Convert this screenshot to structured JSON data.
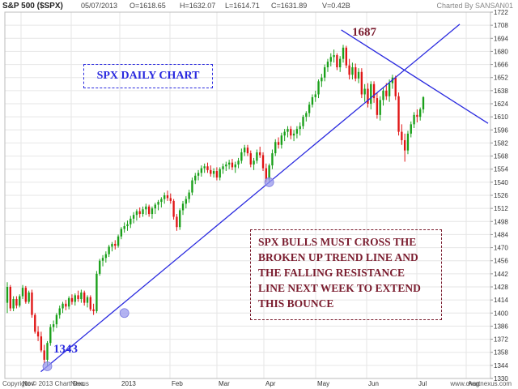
{
  "header": {
    "symbol": "S&P 500 ($SPX)",
    "date": "05/07/2013",
    "open": "O=1618.65",
    "high": "H=1632.07",
    "low": "L=1614.71",
    "close": "C=1631.89",
    "volume": "V=0.42B",
    "credit": "Charted By SANSAN01"
  },
  "footer": {
    "copyright": "Copyright © 2013 ChartNexus",
    "site": "www.chartnexus.com"
  },
  "annotations": {
    "title": "SPX DAILY CHART",
    "note": "SPX BULLS MUST CROSS THE\nBROKEN UP TREND LINE AND\nTHE FALLING RESISTANCE\nLINE NEXT WEEK TO EXTEND\nTHIS BOUNCE",
    "high_label": "1687",
    "low_label": "1343"
  },
  "colors": {
    "up": "#1aa01a",
    "down": "#e01515",
    "trendline": "#2a2adf",
    "grid": "#e6e6e6",
    "note": "#7a1c2e"
  },
  "chart_data": {
    "type": "candlestick",
    "title": "",
    "ylim": [
      1330,
      1722
    ],
    "y_ticks": [
      1330,
      1344,
      1358,
      1372,
      1386,
      1400,
      1414,
      1428,
      1442,
      1456,
      1470,
      1484,
      1498,
      1512,
      1526,
      1540,
      1554,
      1568,
      1582,
      1596,
      1610,
      1624,
      1638,
      1652,
      1666,
      1680,
      1694,
      1708,
      1722
    ],
    "x_ticks": [
      "Nov",
      "Dec",
      "2013",
      "Feb",
      "Mar",
      "Apr",
      "May",
      "Jun",
      "Jul",
      "Aug"
    ],
    "candles": [
      {
        "o": 1411,
        "h": 1433,
        "l": 1400,
        "c": 1428
      },
      {
        "o": 1428,
        "h": 1430,
        "l": 1402,
        "c": 1405
      },
      {
        "o": 1405,
        "h": 1418,
        "l": 1402,
        "c": 1415
      },
      {
        "o": 1415,
        "h": 1418,
        "l": 1405,
        "c": 1408
      },
      {
        "o": 1408,
        "h": 1420,
        "l": 1406,
        "c": 1418
      },
      {
        "o": 1418,
        "h": 1430,
        "l": 1415,
        "c": 1427
      },
      {
        "o": 1427,
        "h": 1429,
        "l": 1410,
        "c": 1412
      },
      {
        "o": 1412,
        "h": 1424,
        "l": 1410,
        "c": 1422
      },
      {
        "o": 1422,
        "h": 1425,
        "l": 1395,
        "c": 1398
      },
      {
        "o": 1398,
        "h": 1400,
        "l": 1378,
        "c": 1380
      },
      {
        "o": 1380,
        "h": 1386,
        "l": 1370,
        "c": 1375
      },
      {
        "o": 1375,
        "h": 1380,
        "l": 1358,
        "c": 1360
      },
      {
        "o": 1360,
        "h": 1366,
        "l": 1345,
        "c": 1350
      },
      {
        "o": 1350,
        "h": 1370,
        "l": 1343,
        "c": 1368
      },
      {
        "o": 1368,
        "h": 1388,
        "l": 1365,
        "c": 1385
      },
      {
        "o": 1385,
        "h": 1392,
        "l": 1380,
        "c": 1388
      },
      {
        "o": 1388,
        "h": 1400,
        "l": 1384,
        "c": 1398
      },
      {
        "o": 1398,
        "h": 1408,
        "l": 1394,
        "c": 1405
      },
      {
        "o": 1405,
        "h": 1412,
        "l": 1400,
        "c": 1410
      },
      {
        "o": 1410,
        "h": 1414,
        "l": 1403,
        "c": 1407
      },
      {
        "o": 1407,
        "h": 1418,
        "l": 1404,
        "c": 1416
      },
      {
        "o": 1416,
        "h": 1420,
        "l": 1409,
        "c": 1412
      },
      {
        "o": 1412,
        "h": 1421,
        "l": 1408,
        "c": 1419
      },
      {
        "o": 1419,
        "h": 1424,
        "l": 1412,
        "c": 1415
      },
      {
        "o": 1415,
        "h": 1425,
        "l": 1411,
        "c": 1422
      },
      {
        "o": 1422,
        "h": 1424,
        "l": 1408,
        "c": 1411
      },
      {
        "o": 1411,
        "h": 1419,
        "l": 1406,
        "c": 1417
      },
      {
        "o": 1417,
        "h": 1419,
        "l": 1402,
        "c": 1404
      },
      {
        "o": 1404,
        "h": 1410,
        "l": 1398,
        "c": 1402
      },
      {
        "o": 1402,
        "h": 1445,
        "l": 1400,
        "c": 1442
      },
      {
        "o": 1442,
        "h": 1458,
        "l": 1440,
        "c": 1456
      },
      {
        "o": 1456,
        "h": 1462,
        "l": 1450,
        "c": 1459
      },
      {
        "o": 1459,
        "h": 1466,
        "l": 1454,
        "c": 1463
      },
      {
        "o": 1463,
        "h": 1473,
        "l": 1460,
        "c": 1471
      },
      {
        "o": 1471,
        "h": 1476,
        "l": 1466,
        "c": 1474
      },
      {
        "o": 1474,
        "h": 1478,
        "l": 1468,
        "c": 1472
      },
      {
        "o": 1472,
        "h": 1484,
        "l": 1470,
        "c": 1482
      },
      {
        "o": 1482,
        "h": 1492,
        "l": 1479,
        "c": 1490
      },
      {
        "o": 1490,
        "h": 1497,
        "l": 1486,
        "c": 1493
      },
      {
        "o": 1493,
        "h": 1499,
        "l": 1488,
        "c": 1495
      },
      {
        "o": 1495,
        "h": 1504,
        "l": 1491,
        "c": 1501
      },
      {
        "o": 1501,
        "h": 1508,
        "l": 1496,
        "c": 1505
      },
      {
        "o": 1505,
        "h": 1511,
        "l": 1499,
        "c": 1509
      },
      {
        "o": 1509,
        "h": 1513,
        "l": 1502,
        "c": 1506
      },
      {
        "o": 1506,
        "h": 1514,
        "l": 1503,
        "c": 1511
      },
      {
        "o": 1511,
        "h": 1517,
        "l": 1505,
        "c": 1514
      },
      {
        "o": 1514,
        "h": 1516,
        "l": 1503,
        "c": 1506
      },
      {
        "o": 1506,
        "h": 1514,
        "l": 1501,
        "c": 1512
      },
      {
        "o": 1512,
        "h": 1518,
        "l": 1506,
        "c": 1516
      },
      {
        "o": 1516,
        "h": 1521,
        "l": 1510,
        "c": 1519
      },
      {
        "o": 1519,
        "h": 1524,
        "l": 1513,
        "c": 1522
      },
      {
        "o": 1522,
        "h": 1529,
        "l": 1517,
        "c": 1526
      },
      {
        "o": 1526,
        "h": 1531,
        "l": 1520,
        "c": 1523
      },
      {
        "o": 1523,
        "h": 1528,
        "l": 1517,
        "c": 1520
      },
      {
        "o": 1520,
        "h": 1522,
        "l": 1500,
        "c": 1503
      },
      {
        "o": 1503,
        "h": 1506,
        "l": 1488,
        "c": 1492
      },
      {
        "o": 1492,
        "h": 1512,
        "l": 1489,
        "c": 1510
      },
      {
        "o": 1510,
        "h": 1520,
        "l": 1505,
        "c": 1517
      },
      {
        "o": 1517,
        "h": 1525,
        "l": 1512,
        "c": 1522
      },
      {
        "o": 1522,
        "h": 1532,
        "l": 1518,
        "c": 1529
      },
      {
        "o": 1529,
        "h": 1545,
        "l": 1526,
        "c": 1542
      },
      {
        "o": 1542,
        "h": 1550,
        "l": 1538,
        "c": 1547
      },
      {
        "o": 1547,
        "h": 1553,
        "l": 1542,
        "c": 1550
      },
      {
        "o": 1550,
        "h": 1558,
        "l": 1546,
        "c": 1555
      },
      {
        "o": 1555,
        "h": 1560,
        "l": 1550,
        "c": 1557
      },
      {
        "o": 1557,
        "h": 1561,
        "l": 1550,
        "c": 1553
      },
      {
        "o": 1553,
        "h": 1558,
        "l": 1546,
        "c": 1549
      },
      {
        "o": 1549,
        "h": 1555,
        "l": 1545,
        "c": 1552
      },
      {
        "o": 1552,
        "h": 1556,
        "l": 1542,
        "c": 1545
      },
      {
        "o": 1545,
        "h": 1556,
        "l": 1542,
        "c": 1554
      },
      {
        "o": 1554,
        "h": 1560,
        "l": 1549,
        "c": 1557
      },
      {
        "o": 1557,
        "h": 1562,
        "l": 1552,
        "c": 1559
      },
      {
        "o": 1559,
        "h": 1564,
        "l": 1554,
        "c": 1561
      },
      {
        "o": 1561,
        "h": 1565,
        "l": 1553,
        "c": 1556
      },
      {
        "o": 1556,
        "h": 1562,
        "l": 1550,
        "c": 1559
      },
      {
        "o": 1559,
        "h": 1566,
        "l": 1555,
        "c": 1563
      },
      {
        "o": 1563,
        "h": 1576,
        "l": 1560,
        "c": 1572
      },
      {
        "o": 1572,
        "h": 1580,
        "l": 1568,
        "c": 1577
      },
      {
        "o": 1577,
        "h": 1580,
        "l": 1568,
        "c": 1571
      },
      {
        "o": 1571,
        "h": 1574,
        "l": 1556,
        "c": 1559
      },
      {
        "o": 1559,
        "h": 1566,
        "l": 1553,
        "c": 1563
      },
      {
        "o": 1563,
        "h": 1575,
        "l": 1560,
        "c": 1572
      },
      {
        "o": 1572,
        "h": 1578,
        "l": 1566,
        "c": 1569
      },
      {
        "o": 1569,
        "h": 1572,
        "l": 1552,
        "c": 1555
      },
      {
        "o": 1555,
        "h": 1560,
        "l": 1540,
        "c": 1543
      },
      {
        "o": 1543,
        "h": 1560,
        "l": 1539,
        "c": 1558
      },
      {
        "o": 1558,
        "h": 1575,
        "l": 1554,
        "c": 1571
      },
      {
        "o": 1571,
        "h": 1586,
        "l": 1568,
        "c": 1583
      },
      {
        "o": 1583,
        "h": 1588,
        "l": 1576,
        "c": 1580
      },
      {
        "o": 1580,
        "h": 1593,
        "l": 1576,
        "c": 1590
      },
      {
        "o": 1590,
        "h": 1597,
        "l": 1584,
        "c": 1594
      },
      {
        "o": 1594,
        "h": 1600,
        "l": 1588,
        "c": 1597
      },
      {
        "o": 1597,
        "h": 1600,
        "l": 1586,
        "c": 1590
      },
      {
        "o": 1590,
        "h": 1596,
        "l": 1584,
        "c": 1592
      },
      {
        "o": 1592,
        "h": 1600,
        "l": 1587,
        "c": 1597
      },
      {
        "o": 1597,
        "h": 1604,
        "l": 1590,
        "c": 1600
      },
      {
        "o": 1600,
        "h": 1612,
        "l": 1597,
        "c": 1610
      },
      {
        "o": 1610,
        "h": 1616,
        "l": 1605,
        "c": 1614
      },
      {
        "o": 1614,
        "h": 1626,
        "l": 1610,
        "c": 1623
      },
      {
        "o": 1623,
        "h": 1634,
        "l": 1620,
        "c": 1631
      },
      {
        "o": 1631,
        "h": 1638,
        "l": 1626,
        "c": 1634
      },
      {
        "o": 1634,
        "h": 1650,
        "l": 1630,
        "c": 1648
      },
      {
        "o": 1648,
        "h": 1656,
        "l": 1642,
        "c": 1652
      },
      {
        "o": 1652,
        "h": 1666,
        "l": 1648,
        "c": 1663
      },
      {
        "o": 1663,
        "h": 1672,
        "l": 1658,
        "c": 1669
      },
      {
        "o": 1669,
        "h": 1678,
        "l": 1664,
        "c": 1674
      },
      {
        "o": 1674,
        "h": 1682,
        "l": 1668,
        "c": 1676
      },
      {
        "o": 1676,
        "h": 1678,
        "l": 1660,
        "c": 1663
      },
      {
        "o": 1663,
        "h": 1675,
        "l": 1658,
        "c": 1672
      },
      {
        "o": 1672,
        "h": 1687,
        "l": 1668,
        "c": 1684
      },
      {
        "o": 1684,
        "h": 1686,
        "l": 1662,
        "c": 1665
      },
      {
        "o": 1665,
        "h": 1672,
        "l": 1650,
        "c": 1655
      },
      {
        "o": 1655,
        "h": 1668,
        "l": 1650,
        "c": 1663
      },
      {
        "o": 1663,
        "h": 1667,
        "l": 1648,
        "c": 1651
      },
      {
        "o": 1651,
        "h": 1662,
        "l": 1646,
        "c": 1658
      },
      {
        "o": 1658,
        "h": 1662,
        "l": 1630,
        "c": 1634
      },
      {
        "o": 1634,
        "h": 1645,
        "l": 1626,
        "c": 1640
      },
      {
        "o": 1640,
        "h": 1646,
        "l": 1620,
        "c": 1624
      },
      {
        "o": 1624,
        "h": 1648,
        "l": 1618,
        "c": 1645
      },
      {
        "o": 1645,
        "h": 1648,
        "l": 1625,
        "c": 1630
      },
      {
        "o": 1630,
        "h": 1636,
        "l": 1608,
        "c": 1612
      },
      {
        "o": 1612,
        "h": 1632,
        "l": 1606,
        "c": 1628
      },
      {
        "o": 1628,
        "h": 1642,
        "l": 1622,
        "c": 1638
      },
      {
        "o": 1638,
        "h": 1646,
        "l": 1628,
        "c": 1632
      },
      {
        "o": 1632,
        "h": 1650,
        "l": 1626,
        "c": 1646
      },
      {
        "o": 1646,
        "h": 1655,
        "l": 1640,
        "c": 1652
      },
      {
        "o": 1652,
        "h": 1654,
        "l": 1628,
        "c": 1632
      },
      {
        "o": 1632,
        "h": 1636,
        "l": 1590,
        "c": 1594
      },
      {
        "o": 1594,
        "h": 1602,
        "l": 1580,
        "c": 1585
      },
      {
        "o": 1585,
        "h": 1592,
        "l": 1562,
        "c": 1574
      },
      {
        "o": 1574,
        "h": 1595,
        "l": 1570,
        "c": 1592
      },
      {
        "o": 1592,
        "h": 1605,
        "l": 1588,
        "c": 1602
      },
      {
        "o": 1602,
        "h": 1615,
        "l": 1598,
        "c": 1612
      },
      {
        "o": 1612,
        "h": 1618,
        "l": 1604,
        "c": 1610
      },
      {
        "o": 1610,
        "h": 1620,
        "l": 1606,
        "c": 1618
      },
      {
        "o": 1618,
        "h": 1632,
        "l": 1614,
        "c": 1631
      }
    ]
  }
}
